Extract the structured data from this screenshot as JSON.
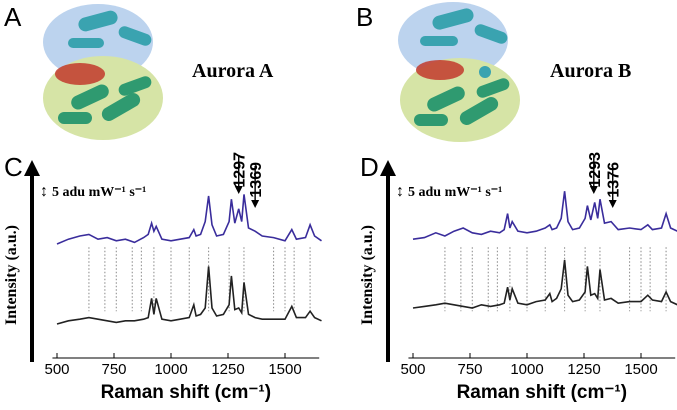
{
  "panels": [
    {
      "label": "A",
      "title": "Aurora A"
    },
    {
      "label": "B",
      "title": "Aurora B"
    }
  ],
  "chart_data": [
    {
      "type": "line",
      "panel": "C",
      "xlabel": "Raman shift (cm⁻¹)",
      "ylabel": "Intensity (a.u.)",
      "scale_bar": "5 adu mW⁻¹ s⁻¹",
      "xlim": [
        480,
        1650
      ],
      "xticks": [
        500,
        750,
        1000,
        1250,
        1500
      ],
      "ylim": [
        0,
        10
      ],
      "peak_labels": [
        1297,
        1369
      ],
      "peak_lines": [
        640,
        710,
        760,
        830,
        870,
        925,
        1000,
        1080,
        1165,
        1255,
        1320,
        1450,
        1500,
        1540,
        1610
      ],
      "x": [
        500,
        550,
        600,
        640,
        680,
        720,
        760,
        800,
        840,
        880,
        900,
        915,
        925,
        935,
        960,
        1000,
        1040,
        1080,
        1100,
        1110,
        1130,
        1150,
        1165,
        1180,
        1200,
        1230,
        1255,
        1265,
        1280,
        1297,
        1310,
        1320,
        1340,
        1369,
        1400,
        1450,
        1500,
        1530,
        1550,
        1590,
        1610,
        1630,
        1660
      ],
      "series": [
        {
          "color": "#3a2d9c",
          "values": [
            6.0,
            6.3,
            6.5,
            6.6,
            6.3,
            6.4,
            6.2,
            6.3,
            6.1,
            6.4,
            6.6,
            7.3,
            6.8,
            7.1,
            6.3,
            6.2,
            6.3,
            6.4,
            6.9,
            6.5,
            6.6,
            7.4,
            9.0,
            7.2,
            6.5,
            6.6,
            7.4,
            8.8,
            7.3,
            8.2,
            7.4,
            9.1,
            7.0,
            6.8,
            6.5,
            6.4,
            6.2,
            6.9,
            6.3,
            6.4,
            7.2,
            6.5,
            6.2
          ]
        },
        {
          "color": "#222222",
          "values": [
            1.0,
            1.2,
            1.3,
            1.4,
            1.3,
            1.2,
            1.1,
            1.2,
            1.2,
            1.3,
            1.4,
            2.6,
            1.6,
            2.6,
            1.3,
            1.2,
            1.3,
            1.4,
            2.2,
            1.5,
            1.6,
            2.0,
            4.6,
            2.0,
            1.5,
            1.6,
            2.2,
            4.0,
            1.9,
            2.0,
            1.7,
            3.6,
            1.6,
            1.4,
            1.3,
            1.3,
            1.3,
            2.1,
            1.4,
            1.4,
            1.8,
            1.4,
            1.2
          ]
        }
      ]
    },
    {
      "type": "line",
      "panel": "D",
      "xlabel": "Raman shift (cm⁻¹)",
      "ylabel": "Intensity (a.u.)",
      "scale_bar": "5 adu mW⁻¹ s⁻¹",
      "xlim": [
        480,
        1650
      ],
      "xticks": [
        500,
        750,
        1000,
        1250,
        1500
      ],
      "ylim": [
        0,
        10
      ],
      "peak_labels": [
        1293,
        1376
      ],
      "peak_lines": [
        640,
        710,
        760,
        830,
        870,
        925,
        1000,
        1080,
        1165,
        1255,
        1320,
        1450,
        1500,
        1540,
        1610
      ],
      "x": [
        500,
        550,
        600,
        640,
        680,
        720,
        760,
        800,
        840,
        880,
        900,
        915,
        925,
        935,
        960,
        1000,
        1040,
        1080,
        1100,
        1110,
        1130,
        1150,
        1165,
        1180,
        1200,
        1230,
        1255,
        1265,
        1280,
        1297,
        1310,
        1320,
        1340,
        1369,
        1400,
        1450,
        1500,
        1530,
        1550,
        1590,
        1610,
        1630,
        1660
      ],
      "series": [
        {
          "color": "#3a2d9c",
          "values": [
            6.3,
            6.4,
            6.7,
            6.5,
            6.8,
            7.0,
            6.7,
            6.6,
            6.8,
            6.7,
            6.9,
            7.9,
            7.0,
            7.4,
            6.8,
            6.7,
            6.8,
            7.0,
            7.2,
            6.9,
            7.0,
            7.6,
            9.3,
            7.4,
            6.9,
            7.0,
            7.6,
            8.4,
            7.5,
            8.6,
            7.6,
            8.8,
            7.3,
            7.4,
            6.9,
            7.0,
            6.9,
            7.2,
            6.9,
            7.0,
            7.9,
            7.0,
            6.8
          ]
        },
        {
          "color": "#222222",
          "values": [
            2.0,
            2.1,
            2.2,
            2.3,
            2.2,
            2.1,
            2.0,
            2.2,
            2.1,
            2.2,
            2.3,
            3.3,
            2.5,
            3.2,
            2.3,
            2.2,
            2.4,
            2.5,
            2.9,
            2.4,
            2.6,
            3.2,
            5.0,
            2.8,
            2.4,
            2.5,
            3.0,
            4.6,
            2.8,
            2.9,
            2.6,
            4.4,
            2.5,
            2.6,
            2.3,
            2.4,
            2.4,
            2.8,
            2.5,
            2.4,
            3.0,
            2.4,
            2.2
          ]
        }
      ]
    }
  ]
}
